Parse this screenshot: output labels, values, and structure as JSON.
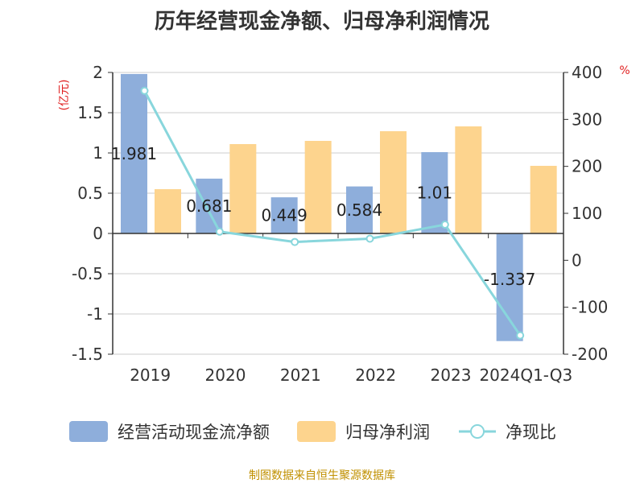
{
  "title": "历年经营现金净额、归母净利润情况",
  "unit_left": "(亿元)",
  "unit_right": "%",
  "source": "制图数据来自恒生聚源数据库",
  "colors": {
    "cash_flow": "#8eaedb",
    "net_profit": "#fdd48e",
    "ratio_line": "#88d6dc",
    "axis_text": "#333333",
    "unit_text": "#e02020",
    "source_text": "#c09000",
    "grid": "#cccccc"
  },
  "chart_data": {
    "type": "bar",
    "categories": [
      "2019",
      "2020",
      "2021",
      "2022",
      "2023",
      "2024Q1-Q3"
    ],
    "series": [
      {
        "name": "经营活动现金流净额",
        "type": "bar",
        "axis": "left",
        "values": [
          1.981,
          0.681,
          0.449,
          0.584,
          1.01,
          -1.337
        ],
        "labels": [
          "1.981",
          "0.681",
          "0.449",
          "0.584",
          "1.01",
          "-1.337"
        ]
      },
      {
        "name": "归母净利润",
        "type": "bar",
        "axis": "left",
        "values": [
          0.55,
          1.11,
          1.15,
          1.27,
          1.33,
          0.84
        ]
      },
      {
        "name": "净现比",
        "type": "line",
        "axis": "right",
        "values": [
          361,
          61,
          39,
          46,
          76,
          -160
        ]
      }
    ],
    "y_left": {
      "min": -1.5,
      "max": 2,
      "ticks": [
        "-1.5",
        "-1",
        "-0.5",
        "0",
        "0.5",
        "1",
        "1.5",
        "2"
      ]
    },
    "y_right": {
      "min": -200,
      "max": 400,
      "ticks": [
        "-200",
        "-100",
        "0",
        "100",
        "200",
        "300",
        "400"
      ]
    },
    "grid": true,
    "legend_position": "bottom"
  }
}
